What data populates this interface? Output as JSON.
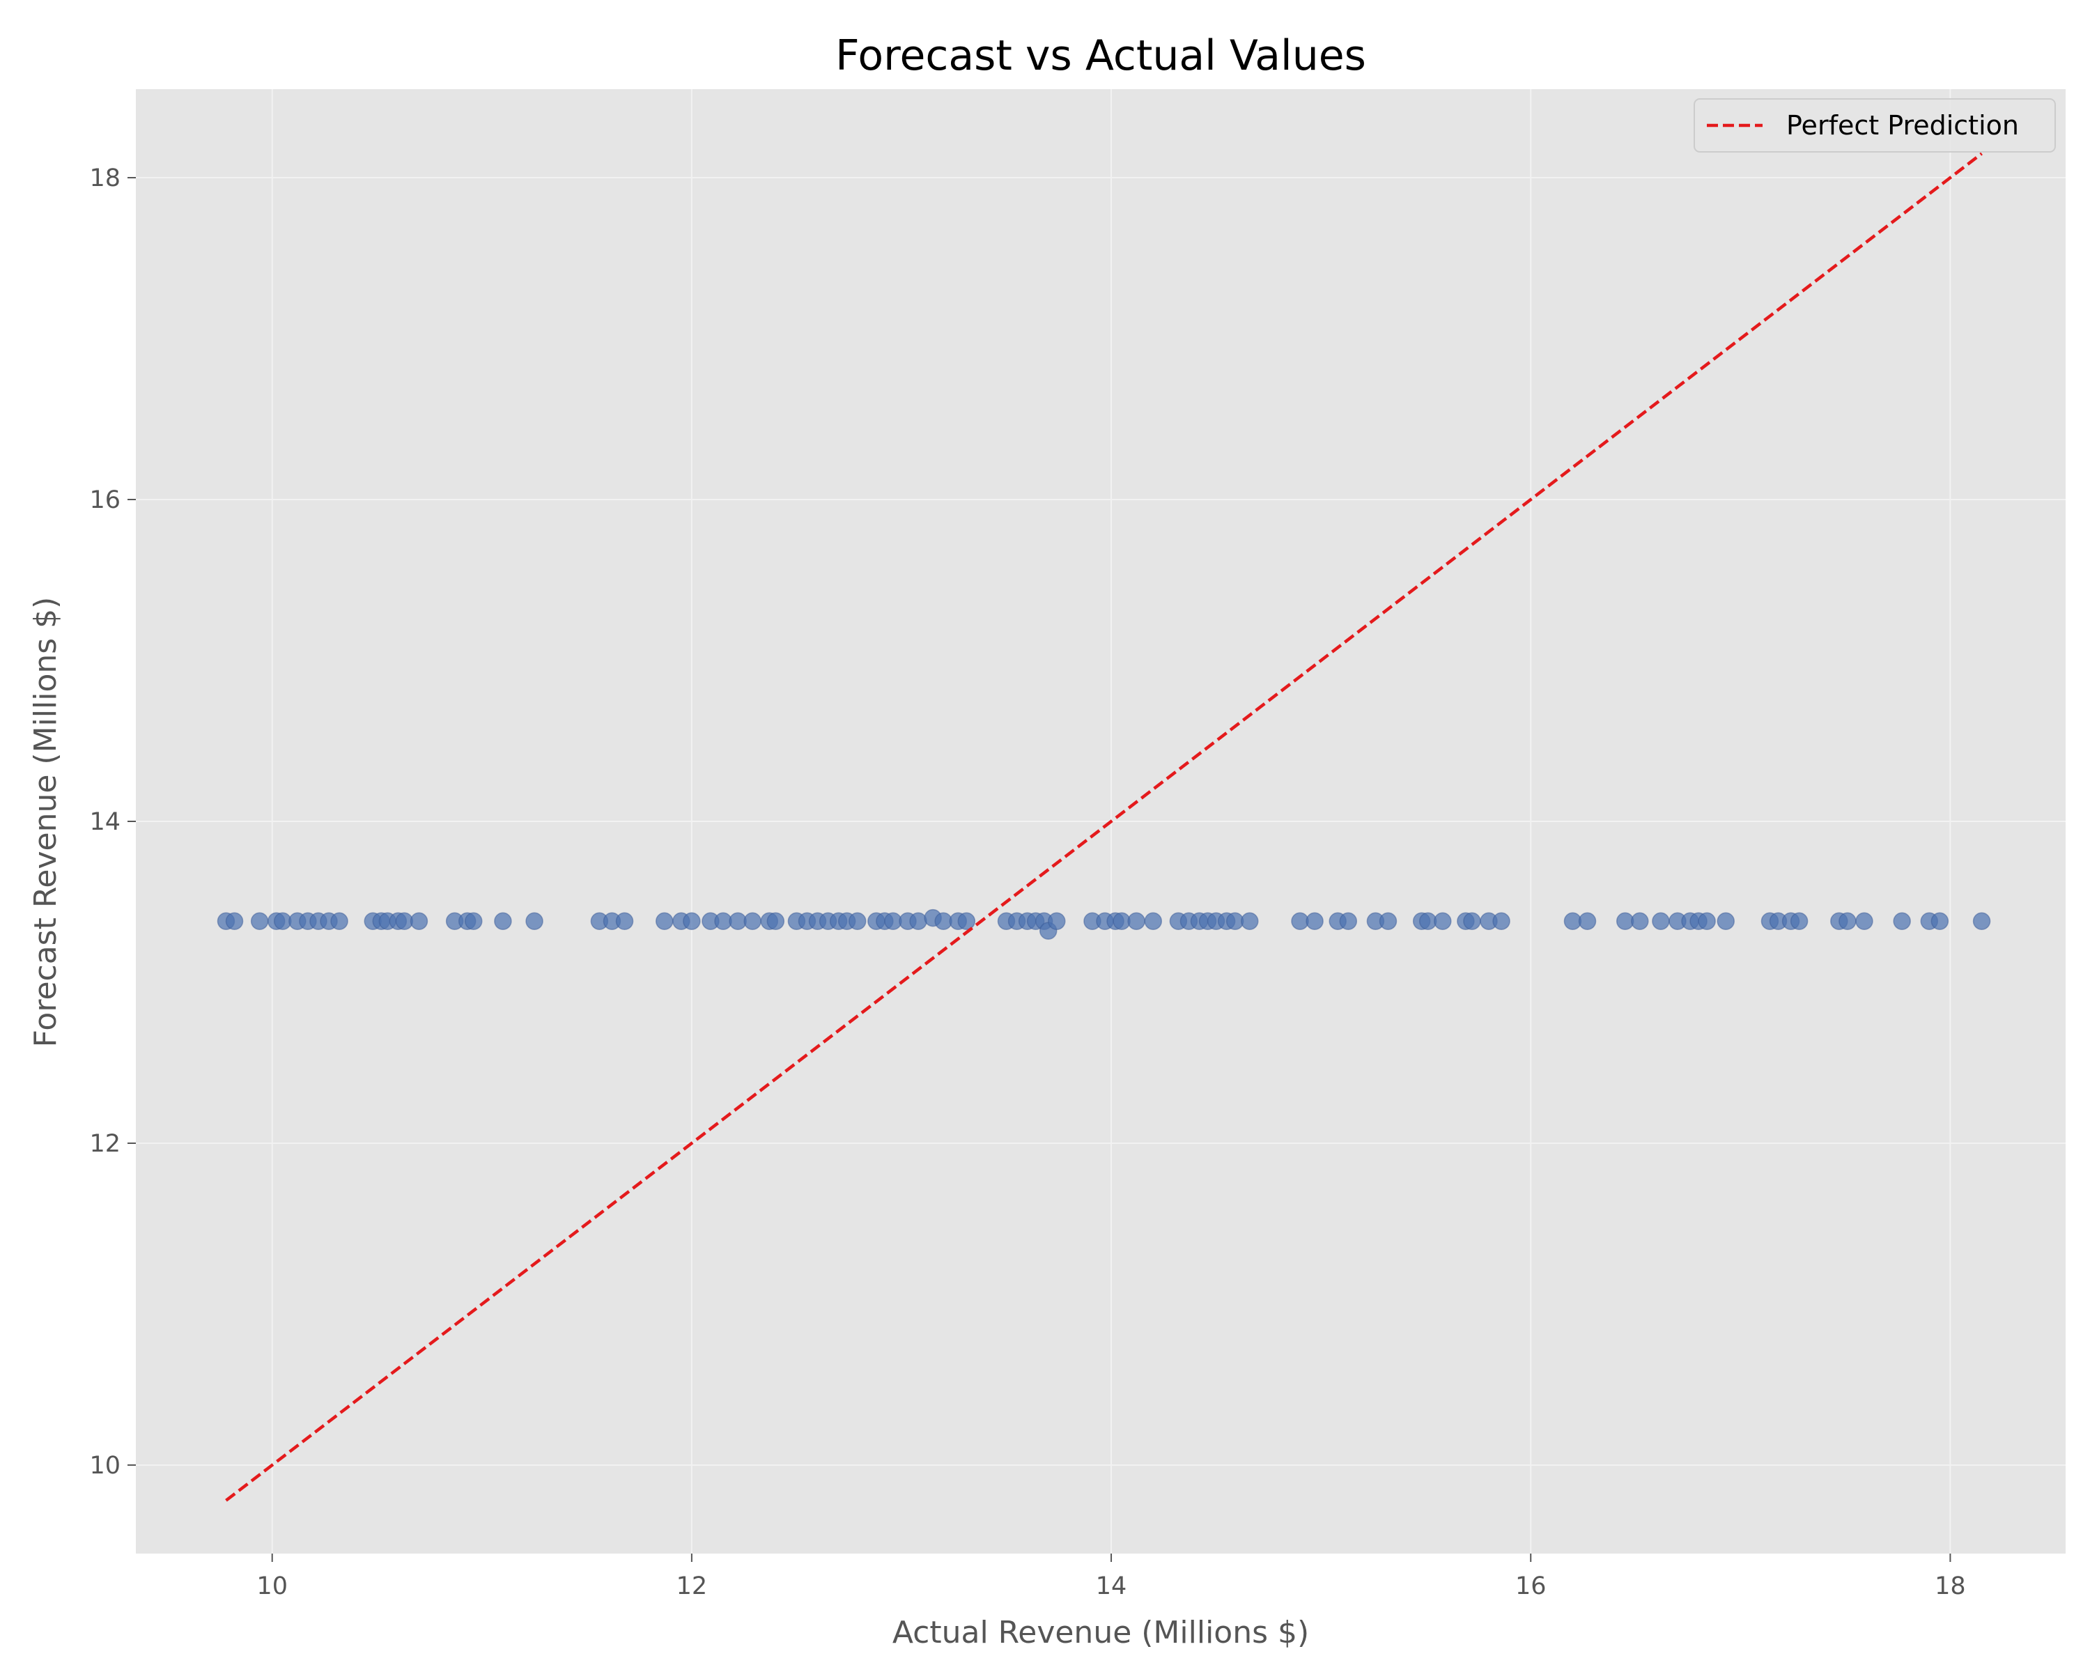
{
  "chart_data": {
    "type": "scatter",
    "title": "Forecast vs Actual Values",
    "xlabel": "Actual Revenue (Millions $)",
    "ylabel": "Forecast Revenue (Millions $)",
    "xlim": [
      9.35,
      18.55
    ],
    "ylim": [
      9.45,
      18.55
    ],
    "xticks": [
      10,
      12,
      14,
      16,
      18
    ],
    "yticks": [
      10,
      12,
      14,
      16,
      18
    ],
    "grid": true,
    "legend": {
      "position": "top-right",
      "entries": [
        "Perfect Prediction"
      ]
    },
    "colors": {
      "points": "#4c72b0",
      "line": "#e41a1c",
      "plot_bg": "#e5e5e5",
      "grid": "#f2f2f2"
    },
    "reference_line": {
      "name": "Perfect Prediction",
      "x": [
        9.78,
        18.15
      ],
      "y": [
        9.78,
        18.15
      ],
      "style": "dashed"
    },
    "series": [
      {
        "points": [
          [
            9.78,
            13.38
          ],
          [
            9.82,
            13.38
          ],
          [
            9.94,
            13.38
          ],
          [
            10.02,
            13.38
          ],
          [
            10.05,
            13.38
          ],
          [
            10.12,
            13.38
          ],
          [
            10.17,
            13.38
          ],
          [
            10.22,
            13.38
          ],
          [
            10.27,
            13.38
          ],
          [
            10.32,
            13.38
          ],
          [
            10.48,
            13.38
          ],
          [
            10.52,
            13.38
          ],
          [
            10.55,
            13.38
          ],
          [
            10.6,
            13.38
          ],
          [
            10.63,
            13.38
          ],
          [
            10.7,
            13.38
          ],
          [
            10.87,
            13.38
          ],
          [
            10.93,
            13.38
          ],
          [
            10.96,
            13.38
          ],
          [
            11.1,
            13.38
          ],
          [
            11.25,
            13.38
          ],
          [
            11.56,
            13.38
          ],
          [
            11.62,
            13.38
          ],
          [
            11.68,
            13.38
          ],
          [
            11.87,
            13.38
          ],
          [
            11.95,
            13.38
          ],
          [
            12.0,
            13.38
          ],
          [
            12.09,
            13.38
          ],
          [
            12.15,
            13.38
          ],
          [
            12.22,
            13.38
          ],
          [
            12.29,
            13.38
          ],
          [
            12.37,
            13.38
          ],
          [
            12.4,
            13.38
          ],
          [
            12.5,
            13.38
          ],
          [
            12.55,
            13.38
          ],
          [
            12.6,
            13.38
          ],
          [
            12.65,
            13.38
          ],
          [
            12.7,
            13.38
          ],
          [
            12.74,
            13.38
          ],
          [
            12.79,
            13.38
          ],
          [
            12.88,
            13.38
          ],
          [
            12.92,
            13.38
          ],
          [
            12.96,
            13.38
          ],
          [
            13.03,
            13.38
          ],
          [
            13.08,
            13.38
          ],
          [
            13.15,
            13.4
          ],
          [
            13.2,
            13.38
          ],
          [
            13.27,
            13.38
          ],
          [
            13.31,
            13.38
          ],
          [
            13.5,
            13.38
          ],
          [
            13.55,
            13.38
          ],
          [
            13.6,
            13.38
          ],
          [
            13.64,
            13.38
          ],
          [
            13.68,
            13.38
          ],
          [
            13.7,
            13.32
          ],
          [
            13.74,
            13.38
          ],
          [
            13.91,
            13.38
          ],
          [
            13.97,
            13.38
          ],
          [
            14.02,
            13.38
          ],
          [
            14.05,
            13.38
          ],
          [
            14.12,
            13.38
          ],
          [
            14.2,
            13.38
          ],
          [
            14.32,
            13.38
          ],
          [
            14.37,
            13.38
          ],
          [
            14.42,
            13.38
          ],
          [
            14.46,
            13.38
          ],
          [
            14.5,
            13.38
          ],
          [
            14.55,
            13.38
          ],
          [
            14.59,
            13.38
          ],
          [
            14.66,
            13.38
          ],
          [
            14.9,
            13.38
          ],
          [
            14.97,
            13.38
          ],
          [
            15.08,
            13.38
          ],
          [
            15.13,
            13.38
          ],
          [
            15.26,
            13.38
          ],
          [
            15.32,
            13.38
          ],
          [
            15.48,
            13.38
          ],
          [
            15.51,
            13.38
          ],
          [
            15.58,
            13.38
          ],
          [
            15.69,
            13.38
          ],
          [
            15.72,
            13.38
          ],
          [
            15.8,
            13.38
          ],
          [
            15.86,
            13.38
          ],
          [
            16.2,
            13.38
          ],
          [
            16.27,
            13.38
          ],
          [
            16.45,
            13.38
          ],
          [
            16.52,
            13.38
          ],
          [
            16.62,
            13.38
          ],
          [
            16.7,
            13.38
          ],
          [
            16.76,
            13.38
          ],
          [
            16.8,
            13.38
          ],
          [
            16.84,
            13.38
          ],
          [
            16.93,
            13.38
          ],
          [
            17.14,
            13.38
          ],
          [
            17.18,
            13.38
          ],
          [
            17.24,
            13.38
          ],
          [
            17.28,
            13.38
          ],
          [
            17.47,
            13.38
          ],
          [
            17.51,
            13.38
          ],
          [
            17.59,
            13.38
          ],
          [
            17.77,
            13.38
          ],
          [
            17.9,
            13.38
          ],
          [
            17.95,
            13.38
          ],
          [
            18.15,
            13.38
          ]
        ]
      }
    ]
  }
}
